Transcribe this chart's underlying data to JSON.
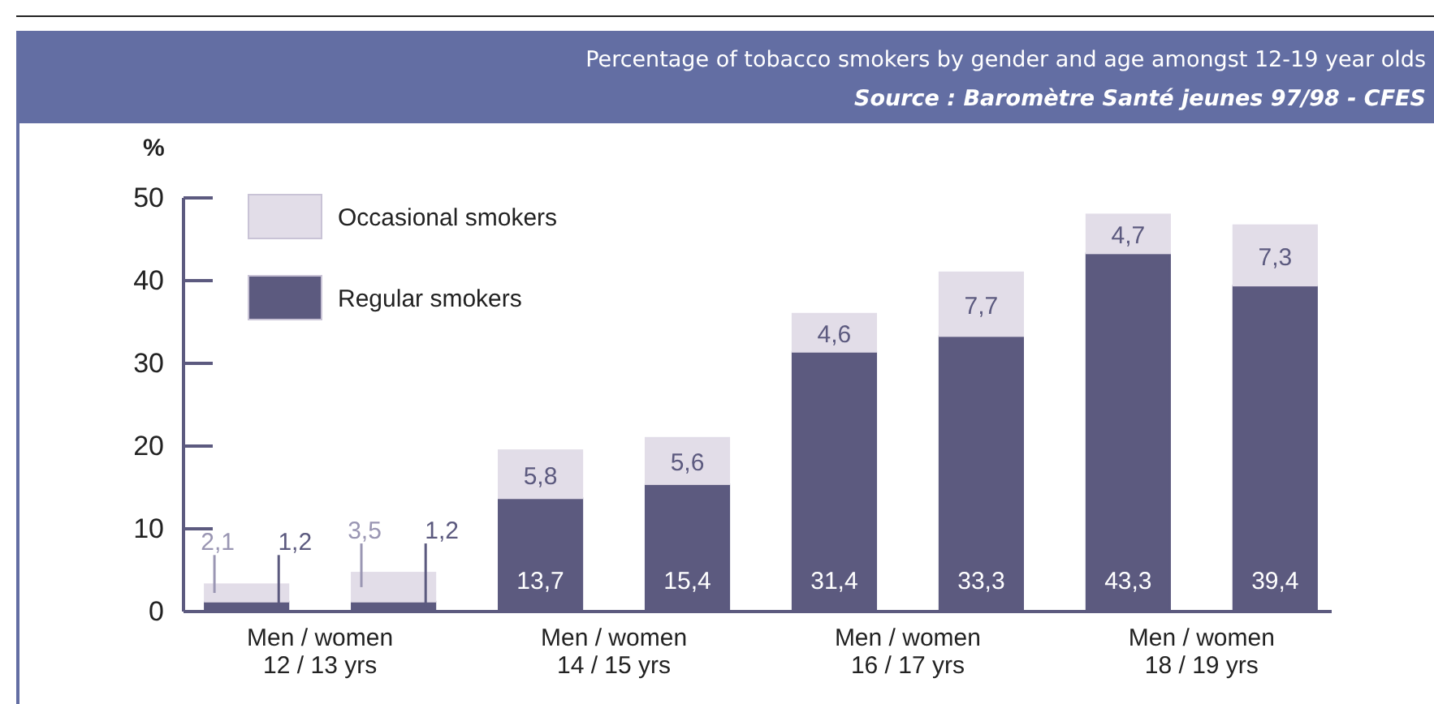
{
  "chart_data": {
    "type": "bar",
    "stacked": true,
    "title": "Percentage of tobacco smokers by gender and age amongst 12-19 year olds",
    "annotations": [
      "Source : Baromètre Santé jeunes 97/98 - CFES"
    ],
    "ylabel": "%",
    "categories": [
      "Men / women\n12 / 13 yrs",
      null,
      "Men / women\n14 / 15 yrs",
      null,
      "Men / women\n16 / 17 yrs",
      null,
      "Men / women\n18 / 19 yrs",
      null
    ],
    "series": [
      {
        "name": "Regular smokers",
        "color": "#5c5a7f",
        "values": [
          1.2,
          1.2,
          13.7,
          15.4,
          31.4,
          33.3,
          43.3,
          39.4
        ],
        "value_labels": [
          "1,2",
          "1,2",
          "13,7",
          "15,4",
          "31,4",
          "33,3",
          "43,3",
          "39,4"
        ]
      },
      {
        "name": "Occasional smokers",
        "color": "#e2dde8",
        "values": [
          2.1,
          3.5,
          5.8,
          5.6,
          4.6,
          7.7,
          4.7,
          7.3
        ],
        "value_labels": [
          "2,1",
          "3,5",
          "5,8",
          "5,6",
          "4,6",
          "7,7",
          "4,7",
          "7,3"
        ]
      }
    ],
    "ylim": [
      0,
      50
    ],
    "yticks": [
      0,
      10,
      20,
      30,
      40,
      50
    ],
    "grid": false,
    "legend": "top left"
  }
}
